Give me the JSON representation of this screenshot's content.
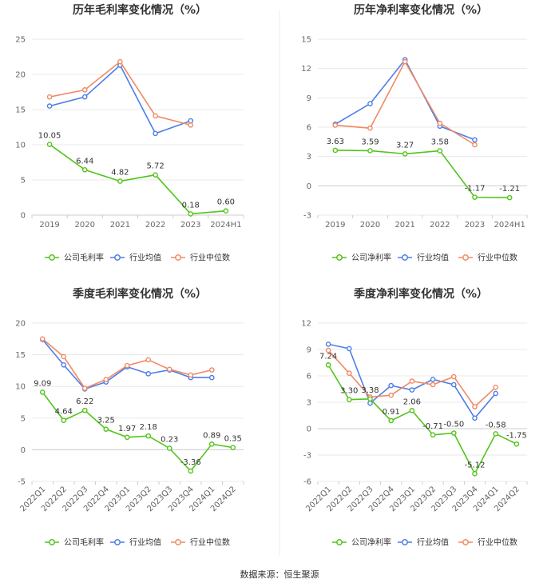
{
  "source": "数据来源：恒生聚源",
  "colors": {
    "primary": "#52c41a",
    "avg": "#4c7de8",
    "median": "#f08a65",
    "grid": "#e8e8e8",
    "axis": "#cccccc"
  },
  "chart_data": [
    {
      "type": "line",
      "title": "历年毛利率变化情况（%）",
      "categories": [
        "2019",
        "2020",
        "2021",
        "2022",
        "2023",
        "2024H1"
      ],
      "ylim": [
        0,
        25
      ],
      "yticks": [
        "0",
        "5",
        "10",
        "15",
        "20",
        "25"
      ],
      "ytick_values": [
        0,
        5,
        10,
        15,
        20,
        25
      ],
      "rotate_x": false,
      "series": [
        {
          "name": "公司毛利率",
          "role": "primary",
          "values": [
            10.05,
            6.44,
            4.82,
            5.72,
            0.18,
            0.6
          ],
          "labels": [
            "10.05",
            "6.44",
            "4.82",
            "5.72",
            "0.18",
            "0.60"
          ]
        },
        {
          "name": "行业均值",
          "role": "avg",
          "values": [
            15.5,
            16.8,
            21.3,
            11.6,
            13.4,
            null
          ]
        },
        {
          "name": "行业中位数",
          "role": "median",
          "values": [
            16.8,
            17.8,
            21.8,
            14.1,
            12.8,
            null
          ]
        }
      ]
    },
    {
      "type": "line",
      "title": "历年净利率变化情况（%）",
      "categories": [
        "2019",
        "2020",
        "2021",
        "2022",
        "2023",
        "2024H1"
      ],
      "ylim": [
        -3,
        15
      ],
      "yticks": [
        "-3",
        "0",
        "3",
        "6",
        "9",
        "12",
        "15"
      ],
      "ytick_values": [
        -3,
        0,
        3,
        6,
        9,
        12,
        15
      ],
      "rotate_x": false,
      "series": [
        {
          "name": "公司净利率",
          "role": "primary",
          "values": [
            3.63,
            3.59,
            3.27,
            3.58,
            -1.17,
            -1.21
          ],
          "labels": [
            "3.63",
            "3.59",
            "3.27",
            "3.58",
            "-1.17",
            "-1.21"
          ]
        },
        {
          "name": "行业均值",
          "role": "avg",
          "values": [
            6.3,
            8.4,
            12.9,
            6.1,
            4.7,
            null
          ]
        },
        {
          "name": "行业中位数",
          "role": "median",
          "values": [
            6.2,
            5.9,
            12.7,
            6.4,
            4.2,
            null
          ]
        }
      ]
    },
    {
      "type": "line",
      "title": "季度毛利率变化情况（%）",
      "categories": [
        "2022Q1",
        "2022Q2",
        "2022Q3",
        "2022Q4",
        "2023Q1",
        "2023Q2",
        "2023Q3",
        "2023Q4",
        "2024Q1",
        "2024Q2"
      ],
      "ylim": [
        -5,
        20
      ],
      "yticks": [
        "-5",
        "0",
        "5",
        "10",
        "15",
        "20"
      ],
      "ytick_values": [
        -5,
        0,
        5,
        10,
        15,
        20
      ],
      "rotate_x": true,
      "series": [
        {
          "name": "公司毛利率",
          "role": "primary",
          "values": [
            9.09,
            4.64,
            6.22,
            3.25,
            1.97,
            2.18,
            0.23,
            -3.36,
            0.89,
            0.35
          ],
          "labels": [
            "9.09",
            "4.64",
            "6.22",
            "3.25",
            "1.97",
            "2.18",
            "0.23",
            "-3.36",
            "0.89",
            "0.35"
          ]
        },
        {
          "name": "行业均值",
          "role": "avg",
          "values": [
            17.4,
            13.4,
            9.6,
            10.7,
            13.1,
            12.0,
            12.6,
            11.4,
            11.4,
            null
          ]
        },
        {
          "name": "行业中位数",
          "role": "median",
          "values": [
            17.5,
            14.7,
            9.7,
            11.1,
            13.3,
            14.2,
            12.7,
            11.8,
            12.6,
            null
          ]
        }
      ]
    },
    {
      "type": "line",
      "title": "季度净利率变化情况（%）",
      "categories": [
        "2022Q1",
        "2022Q2",
        "2022Q3",
        "2022Q4",
        "2023Q1",
        "2023Q2",
        "2023Q3",
        "2023Q4",
        "2024Q1",
        "2024Q2"
      ],
      "ylim": [
        -6,
        12
      ],
      "yticks": [
        "-6",
        "-3",
        "0",
        "3",
        "6",
        "9",
        "12"
      ],
      "ytick_values": [
        -6,
        -3,
        0,
        3,
        6,
        9,
        12
      ],
      "rotate_x": true,
      "series": [
        {
          "name": "公司净利率",
          "role": "primary",
          "values": [
            7.24,
            3.3,
            3.38,
            0.91,
            2.06,
            -0.71,
            -0.5,
            -5.12,
            -0.58,
            -1.75
          ],
          "labels": [
            "7.24",
            "3.30",
            "3.38",
            "0.91",
            "2.06",
            "-0.71",
            "-0.50",
            "-5.12",
            "-0.58",
            "-1.75"
          ]
        },
        {
          "name": "行业均值",
          "role": "avg",
          "values": [
            9.6,
            9.1,
            2.9,
            4.9,
            4.4,
            5.6,
            5.0,
            1.2,
            4.0,
            null
          ]
        },
        {
          "name": "行业中位数",
          "role": "median",
          "values": [
            8.9,
            6.3,
            3.6,
            3.8,
            5.4,
            5.0,
            5.9,
            2.5,
            4.7,
            null
          ]
        }
      ]
    }
  ]
}
